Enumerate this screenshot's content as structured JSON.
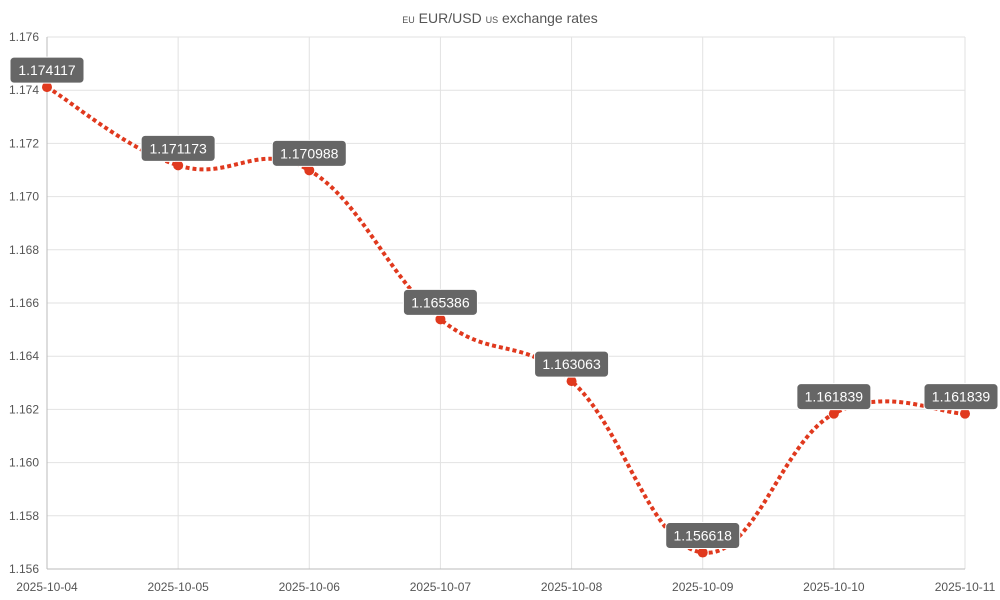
{
  "chart_data": {
    "type": "line",
    "title": "🇪🇺 EUR/USD 🇺🇸 exchange rates",
    "title_parts": {
      "flag1": "EU",
      "pair": "EUR/USD",
      "flag2": "US",
      "rest": "exchange rates"
    },
    "xlabel": "",
    "ylabel": "",
    "x": [
      "2025-10-04",
      "2025-10-05",
      "2025-10-06",
      "2025-10-07",
      "2025-10-08",
      "2025-10-09",
      "2025-10-10",
      "2025-10-11"
    ],
    "series": [
      {
        "name": "EUR/USD",
        "values": [
          1.174117,
          1.171173,
          1.170988,
          1.165386,
          1.163063,
          1.156618,
          1.161839,
          1.161839
        ],
        "color": "#e0391e"
      }
    ],
    "data_labels": [
      "1.174117",
      "1.171173",
      "1.170988",
      "1.165386",
      "1.163063",
      "1.156618",
      "1.161839",
      "1.161839"
    ],
    "ylim": [
      1.156,
      1.176
    ],
    "yticks": [
      "1.156",
      "1.158",
      "1.160",
      "1.162",
      "1.164",
      "1.166",
      "1.168",
      "1.170",
      "1.172",
      "1.174",
      "1.176"
    ],
    "grid": true,
    "label_bg": "#666666"
  }
}
